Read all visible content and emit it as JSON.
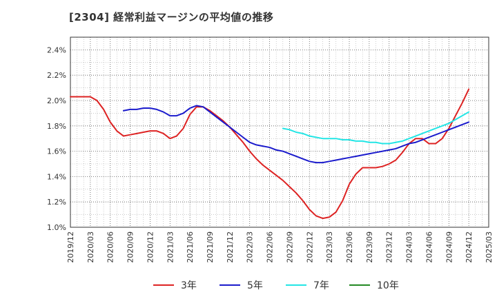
{
  "chart_data": {
    "type": "line",
    "title": "[2304]  経常利益マージンの平均値の推移",
    "xlabel": "",
    "ylabel": "",
    "ylim": [
      1.0,
      2.5
    ],
    "yticks": [
      "1.0%",
      "1.2%",
      "1.4%",
      "1.6%",
      "1.8%",
      "2.0%",
      "2.2%",
      "2.4%"
    ],
    "ytick_values": [
      1.0,
      1.2,
      1.4,
      1.6,
      1.8,
      2.0,
      2.2,
      2.4
    ],
    "xticks": [
      "2019/12",
      "2020/03",
      "2020/06",
      "2020/09",
      "2020/12",
      "2021/03",
      "2021/06",
      "2021/09",
      "2021/12",
      "2022/03",
      "2022/06",
      "2022/09",
      "2022/12",
      "2023/03",
      "2023/06",
      "2023/09",
      "2023/12",
      "2024/03",
      "2024/06",
      "2024/09",
      "2024/12",
      "2025/03"
    ],
    "grid": true,
    "legend_position": "bottom",
    "series": [
      {
        "name": "3年",
        "color": "#dd2222",
        "points": [
          [
            "2019/12",
            2.03
          ],
          [
            "2020/01",
            2.03
          ],
          [
            "2020/02",
            2.03
          ],
          [
            "2020/03",
            2.03
          ],
          [
            "2020/04",
            2.0
          ],
          [
            "2020/05",
            1.93
          ],
          [
            "2020/06",
            1.83
          ],
          [
            "2020/07",
            1.76
          ],
          [
            "2020/08",
            1.72
          ],
          [
            "2020/09",
            1.73
          ],
          [
            "2020/10",
            1.74
          ],
          [
            "2020/11",
            1.75
          ],
          [
            "2020/12",
            1.76
          ],
          [
            "2021/01",
            1.76
          ],
          [
            "2021/02",
            1.74
          ],
          [
            "2021/03",
            1.7
          ],
          [
            "2021/04",
            1.72
          ],
          [
            "2021/05",
            1.78
          ],
          [
            "2021/06",
            1.89
          ],
          [
            "2021/07",
            1.95
          ],
          [
            "2021/08",
            1.95
          ],
          [
            "2021/09",
            1.92
          ],
          [
            "2021/10",
            1.88
          ],
          [
            "2021/11",
            1.84
          ],
          [
            "2021/12",
            1.79
          ],
          [
            "2022/01",
            1.73
          ],
          [
            "2022/02",
            1.67
          ],
          [
            "2022/03",
            1.6
          ],
          [
            "2022/04",
            1.54
          ],
          [
            "2022/05",
            1.49
          ],
          [
            "2022/06",
            1.45
          ],
          [
            "2022/07",
            1.41
          ],
          [
            "2022/08",
            1.37
          ],
          [
            "2022/09",
            1.32
          ],
          [
            "2022/10",
            1.27
          ],
          [
            "2022/11",
            1.21
          ],
          [
            "2022/12",
            1.14
          ],
          [
            "2023/01",
            1.09
          ],
          [
            "2023/02",
            1.07
          ],
          [
            "2023/03",
            1.08
          ],
          [
            "2023/04",
            1.12
          ],
          [
            "2023/05",
            1.21
          ],
          [
            "2023/06",
            1.34
          ],
          [
            "2023/07",
            1.42
          ],
          [
            "2023/08",
            1.47
          ],
          [
            "2023/09",
            1.47
          ],
          [
            "2023/10",
            1.47
          ],
          [
            "2023/11",
            1.48
          ],
          [
            "2023/12",
            1.5
          ],
          [
            "2024/01",
            1.53
          ],
          [
            "2024/02",
            1.59
          ],
          [
            "2024/03",
            1.66
          ],
          [
            "2024/04",
            1.7
          ],
          [
            "2024/05",
            1.7
          ],
          [
            "2024/06",
            1.66
          ],
          [
            "2024/07",
            1.66
          ],
          [
            "2024/08",
            1.7
          ],
          [
            "2024/09",
            1.78
          ],
          [
            "2024/10",
            1.88
          ],
          [
            "2024/11",
            1.98
          ],
          [
            "2024/12",
            2.09
          ]
        ]
      },
      {
        "name": "5年",
        "color": "#1a1acc",
        "points": [
          [
            "2020/08",
            1.92
          ],
          [
            "2020/09",
            1.93
          ],
          [
            "2020/10",
            1.93
          ],
          [
            "2020/11",
            1.94
          ],
          [
            "2020/12",
            1.94
          ],
          [
            "2021/01",
            1.93
          ],
          [
            "2021/02",
            1.91
          ],
          [
            "2021/03",
            1.88
          ],
          [
            "2021/04",
            1.88
          ],
          [
            "2021/05",
            1.9
          ],
          [
            "2021/06",
            1.94
          ],
          [
            "2021/07",
            1.96
          ],
          [
            "2021/08",
            1.95
          ],
          [
            "2021/09",
            1.91
          ],
          [
            "2021/10",
            1.87
          ],
          [
            "2021/11",
            1.83
          ],
          [
            "2021/12",
            1.79
          ],
          [
            "2022/01",
            1.75
          ],
          [
            "2022/02",
            1.71
          ],
          [
            "2022/03",
            1.67
          ],
          [
            "2022/04",
            1.65
          ],
          [
            "2022/05",
            1.64
          ],
          [
            "2022/06",
            1.63
          ],
          [
            "2022/07",
            1.61
          ],
          [
            "2022/08",
            1.6
          ],
          [
            "2022/09",
            1.58
          ],
          [
            "2022/10",
            1.56
          ],
          [
            "2022/11",
            1.54
          ],
          [
            "2022/12",
            1.52
          ],
          [
            "2023/01",
            1.51
          ],
          [
            "2023/02",
            1.51
          ],
          [
            "2023/03",
            1.52
          ],
          [
            "2023/04",
            1.53
          ],
          [
            "2023/05",
            1.54
          ],
          [
            "2023/06",
            1.55
          ],
          [
            "2023/07",
            1.56
          ],
          [
            "2023/08",
            1.57
          ],
          [
            "2023/09",
            1.58
          ],
          [
            "2023/10",
            1.59
          ],
          [
            "2023/11",
            1.6
          ],
          [
            "2023/12",
            1.61
          ],
          [
            "2024/01",
            1.62
          ],
          [
            "2024/02",
            1.64
          ],
          [
            "2024/03",
            1.66
          ],
          [
            "2024/04",
            1.67
          ],
          [
            "2024/05",
            1.69
          ],
          [
            "2024/06",
            1.71
          ],
          [
            "2024/07",
            1.73
          ],
          [
            "2024/08",
            1.75
          ],
          [
            "2024/09",
            1.77
          ],
          [
            "2024/10",
            1.79
          ],
          [
            "2024/11",
            1.81
          ],
          [
            "2024/12",
            1.83
          ]
        ]
      },
      {
        "name": "7年",
        "color": "#22e5e5",
        "points": [
          [
            "2022/08",
            1.78
          ],
          [
            "2022/09",
            1.77
          ],
          [
            "2022/10",
            1.75
          ],
          [
            "2022/11",
            1.74
          ],
          [
            "2022/12",
            1.72
          ],
          [
            "2023/01",
            1.71
          ],
          [
            "2023/02",
            1.7
          ],
          [
            "2023/03",
            1.7
          ],
          [
            "2023/04",
            1.7
          ],
          [
            "2023/05",
            1.69
          ],
          [
            "2023/06",
            1.69
          ],
          [
            "2023/07",
            1.68
          ],
          [
            "2023/08",
            1.68
          ],
          [
            "2023/09",
            1.67
          ],
          [
            "2023/10",
            1.67
          ],
          [
            "2023/11",
            1.66
          ],
          [
            "2023/12",
            1.66
          ],
          [
            "2024/01",
            1.67
          ],
          [
            "2024/02",
            1.68
          ],
          [
            "2024/03",
            1.7
          ],
          [
            "2024/04",
            1.72
          ],
          [
            "2024/05",
            1.74
          ],
          [
            "2024/06",
            1.76
          ],
          [
            "2024/07",
            1.78
          ],
          [
            "2024/08",
            1.8
          ],
          [
            "2024/09",
            1.82
          ],
          [
            "2024/10",
            1.85
          ],
          [
            "2024/11",
            1.88
          ],
          [
            "2024/12",
            1.91
          ]
        ]
      },
      {
        "name": "10年",
        "color": "#228822",
        "points": []
      }
    ]
  }
}
